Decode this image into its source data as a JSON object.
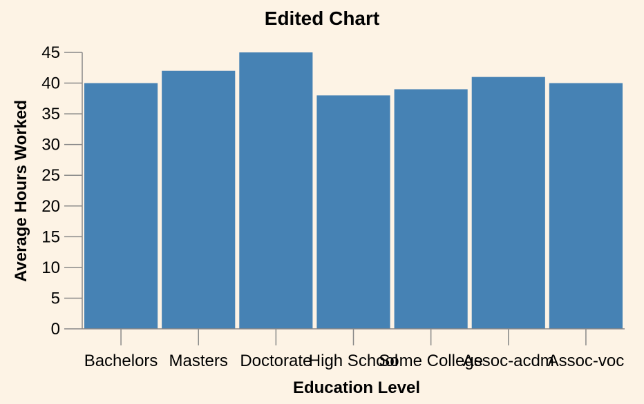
{
  "chart_data": {
    "type": "bar",
    "title": "Edited Chart",
    "xlabel": "Education Level",
    "ylabel": "Average Hours Worked",
    "categories": [
      "Bachelors",
      "Masters",
      "Doctorate",
      "High School",
      "Some College",
      "Assoc-acdm",
      "Assoc-voc"
    ],
    "values": [
      40,
      42,
      45,
      38,
      39,
      41,
      40
    ],
    "ylim": [
      0,
      45
    ],
    "yticks": [
      "0",
      "5",
      "10",
      "15",
      "20",
      "25",
      "30",
      "35",
      "40",
      "45"
    ],
    "grid": false,
    "legend": "none",
    "colors": {
      "bar": "#4682b4",
      "background": "#fdf3e5"
    }
  }
}
